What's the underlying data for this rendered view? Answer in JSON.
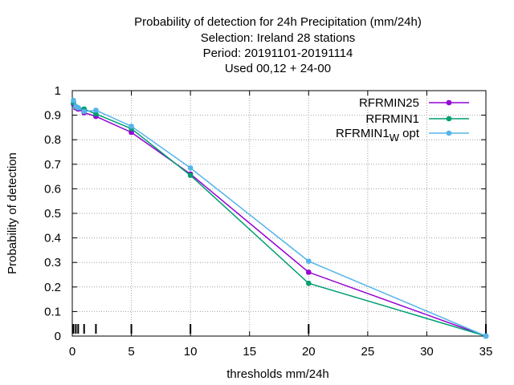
{
  "chart_data": {
    "type": "line",
    "title_lines": [
      "Probability of detection  for 24h Precipitation (mm/24h)",
      "Selection: Ireland     28 stations",
      "Period: 20191101-20191114",
      "Used  00,12  + 24-00"
    ],
    "xlabel": "thresholds mm/24h",
    "ylabel": "Probability of detection",
    "xlim": [
      0,
      35
    ],
    "ylim": [
      0,
      1
    ],
    "x_ticks": [
      0,
      5,
      10,
      15,
      20,
      25,
      30,
      35
    ],
    "y_ticks": [
      0,
      0.1,
      0.2,
      0.3,
      0.4,
      0.5,
      0.6,
      0.7,
      0.8,
      0.9,
      1
    ],
    "y_tick_labels": [
      "0",
      "0.1",
      "0.2",
      "0.3",
      "0.4",
      "0.5",
      "0.6",
      "0.7",
      "0.8",
      "0.9",
      "1"
    ],
    "grid": true,
    "legend_position": "top-right",
    "threshold_markers": [
      0.1,
      0.3,
      0.5,
      1,
      2,
      5,
      10,
      20,
      35
    ],
    "series": [
      {
        "name": "RFRMIN25",
        "legend_main": "RFRMIN25",
        "legend_sub": "",
        "legend_suffix": "",
        "color": "#9400d3",
        "x": [
          0.1,
          0.3,
          0.5,
          1,
          2,
          5,
          10,
          20,
          35
        ],
        "y": [
          0.945,
          0.93,
          0.925,
          0.91,
          0.895,
          0.83,
          0.66,
          0.26,
          0.0
        ]
      },
      {
        "name": "RFRMIN1",
        "legend_main": "RFRMIN1",
        "legend_sub": "",
        "legend_suffix": "",
        "color": "#009e73",
        "x": [
          0.1,
          0.3,
          0.5,
          1,
          2,
          5,
          10,
          20,
          35
        ],
        "y": [
          0.95,
          0.935,
          0.93,
          0.925,
          0.905,
          0.845,
          0.655,
          0.215,
          0.0
        ]
      },
      {
        "name": "RFRMIN1_W opt",
        "legend_main": "RFRMIN1",
        "legend_sub": "W",
        "legend_suffix": "opt",
        "color": "#56b4e9",
        "x": [
          0.1,
          0.3,
          0.5,
          1,
          2,
          5,
          10,
          20,
          35
        ],
        "y": [
          0.96,
          0.935,
          0.93,
          0.915,
          0.92,
          0.855,
          0.685,
          0.305,
          0.0
        ]
      }
    ]
  }
}
